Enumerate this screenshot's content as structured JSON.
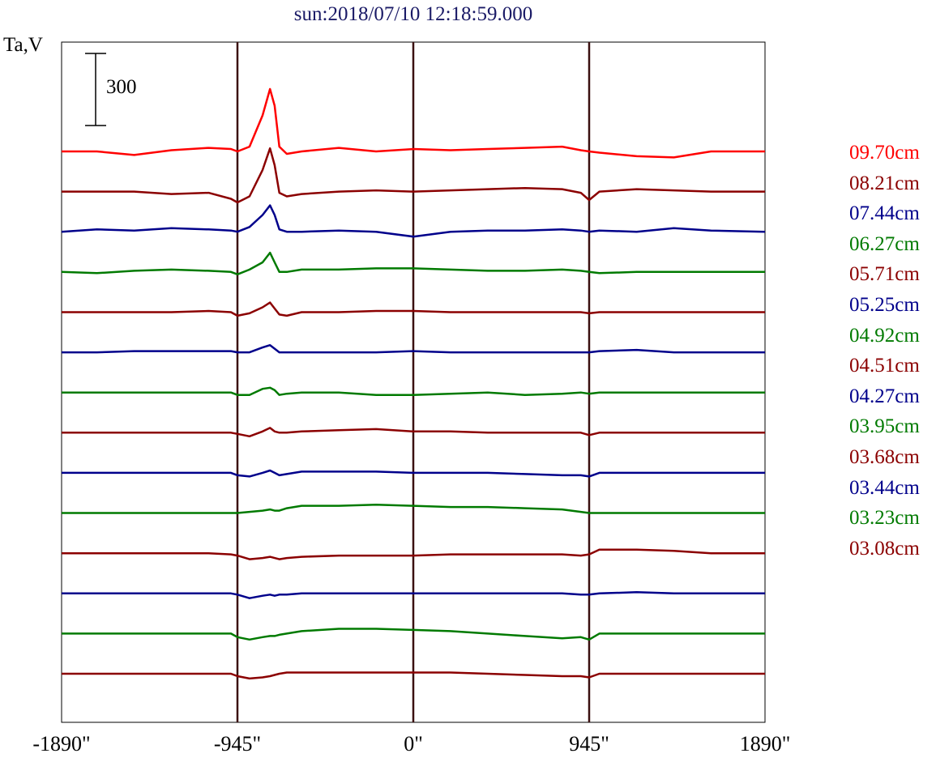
{
  "title": "sun:2018/07/10 12:18:59.000",
  "y_unit_label": "Ta,V",
  "scale_bar_label": "300",
  "chart_data": {
    "type": "line",
    "title": "sun:2018/07/10 12:18:59.000",
    "ylabel": "Ta,V",
    "xlabel": "",
    "xlim": [
      -1890,
      1890
    ],
    "x_ticks": [
      "-1890\"",
      "-945\"",
      "0\"",
      "945\"",
      "1890\""
    ],
    "x_tick_values": [
      -1890,
      -945,
      0,
      945,
      1890
    ],
    "vertical_lines_at": [
      -945,
      0,
      945
    ],
    "scale_bar_value": 300,
    "note": "stacked offset traces; values are approximate amplitudes in Ta units relative to each trace baseline",
    "x": [
      -1890,
      -1700,
      -1500,
      -1300,
      -1100,
      -980,
      -945,
      -880,
      -810,
      -770,
      -745,
      -720,
      -680,
      -600,
      -400,
      -200,
      0,
      200,
      400,
      600,
      800,
      900,
      945,
      1000,
      1200,
      1400,
      1600,
      1890
    ],
    "series": [
      {
        "name": "09.70cm",
        "color": "#ff0000",
        "values": [
          0,
          0,
          -15,
          5,
          15,
          10,
          0,
          20,
          150,
          260,
          190,
          20,
          -10,
          0,
          15,
          0,
          10,
          5,
          10,
          15,
          20,
          5,
          0,
          -5,
          -20,
          -25,
          0,
          0
        ]
      },
      {
        "name": "08.21cm",
        "color": "#8b0000",
        "values": [
          0,
          0,
          0,
          -10,
          -5,
          -30,
          -45,
          -20,
          90,
          180,
          110,
          -5,
          -20,
          -10,
          0,
          5,
          0,
          5,
          10,
          15,
          10,
          -5,
          -35,
          0,
          10,
          5,
          0,
          0
        ]
      },
      {
        "name": "07.44cm",
        "color": "#00008b",
        "values": [
          0,
          10,
          5,
          15,
          10,
          5,
          0,
          20,
          70,
          110,
          70,
          10,
          0,
          0,
          5,
          0,
          -20,
          0,
          5,
          5,
          10,
          5,
          0,
          5,
          0,
          15,
          5,
          0
        ]
      },
      {
        "name": "06.27cm",
        "color": "#007a00",
        "values": [
          0,
          -5,
          5,
          10,
          5,
          0,
          -10,
          10,
          40,
          80,
          40,
          0,
          0,
          10,
          10,
          15,
          15,
          10,
          5,
          5,
          10,
          5,
          0,
          -5,
          0,
          0,
          0,
          0
        ]
      },
      {
        "name": "05.71cm",
        "color": "#8b0000",
        "values": [
          0,
          0,
          0,
          0,
          5,
          0,
          -15,
          -5,
          20,
          40,
          15,
          -10,
          -15,
          0,
          0,
          5,
          5,
          0,
          0,
          0,
          0,
          0,
          -5,
          0,
          0,
          0,
          0,
          0
        ]
      },
      {
        "name": "05.25cm",
        "color": "#00008b",
        "values": [
          0,
          0,
          5,
          5,
          5,
          5,
          0,
          0,
          20,
          30,
          15,
          0,
          0,
          0,
          0,
          0,
          5,
          0,
          0,
          0,
          0,
          0,
          0,
          5,
          10,
          0,
          0,
          0
        ]
      },
      {
        "name": "04.92cm",
        "color": "#007a00",
        "values": [
          0,
          0,
          0,
          0,
          0,
          0,
          -10,
          -10,
          15,
          20,
          10,
          -10,
          -5,
          0,
          0,
          -10,
          -10,
          -5,
          0,
          -10,
          -5,
          0,
          -5,
          0,
          0,
          0,
          0,
          0
        ]
      },
      {
        "name": "04.51cm",
        "color": "#8b0000",
        "values": [
          0,
          0,
          0,
          0,
          0,
          0,
          -5,
          -15,
          5,
          20,
          5,
          0,
          0,
          5,
          10,
          15,
          5,
          5,
          0,
          0,
          0,
          0,
          -10,
          0,
          0,
          0,
          0,
          0
        ]
      },
      {
        "name": "04.27cm",
        "color": "#00008b",
        "values": [
          0,
          0,
          0,
          0,
          0,
          0,
          -10,
          -15,
          0,
          10,
          0,
          -10,
          -5,
          5,
          5,
          5,
          0,
          0,
          0,
          -5,
          -10,
          -10,
          -15,
          0,
          0,
          0,
          0,
          0
        ]
      },
      {
        "name": "03.95cm",
        "color": "#007a00",
        "values": [
          0,
          0,
          0,
          0,
          0,
          0,
          0,
          5,
          10,
          15,
          10,
          10,
          20,
          30,
          30,
          35,
          30,
          25,
          25,
          20,
          15,
          5,
          0,
          0,
          0,
          0,
          0,
          0
        ]
      },
      {
        "name": "03.68cm",
        "color": "#8b0000",
        "values": [
          0,
          0,
          0,
          0,
          0,
          -5,
          -10,
          -25,
          -20,
          -15,
          -20,
          -25,
          -20,
          -15,
          -10,
          -10,
          -10,
          -5,
          -5,
          -5,
          -5,
          -10,
          -5,
          15,
          15,
          10,
          0,
          0
        ]
      },
      {
        "name": "03.44cm",
        "color": "#00008b",
        "values": [
          0,
          0,
          0,
          0,
          0,
          0,
          -5,
          -20,
          -10,
          -5,
          -10,
          -5,
          -5,
          0,
          0,
          0,
          0,
          0,
          0,
          0,
          0,
          -5,
          -5,
          0,
          5,
          0,
          0,
          0
        ]
      },
      {
        "name": "03.23cm",
        "color": "#007a00",
        "values": [
          0,
          0,
          0,
          0,
          0,
          0,
          -15,
          -25,
          -15,
          -10,
          -10,
          -5,
          0,
          10,
          20,
          20,
          15,
          10,
          0,
          -10,
          -20,
          -15,
          -25,
          0,
          0,
          0,
          0,
          0
        ]
      },
      {
        "name": "03.08cm",
        "color": "#8b0000",
        "values": [
          0,
          0,
          0,
          0,
          0,
          0,
          -10,
          -20,
          -15,
          -10,
          -5,
          0,
          5,
          5,
          5,
          5,
          5,
          5,
          0,
          -5,
          -10,
          -10,
          -15,
          0,
          0,
          0,
          0,
          0
        ]
      }
    ],
    "legend_position": "right"
  }
}
